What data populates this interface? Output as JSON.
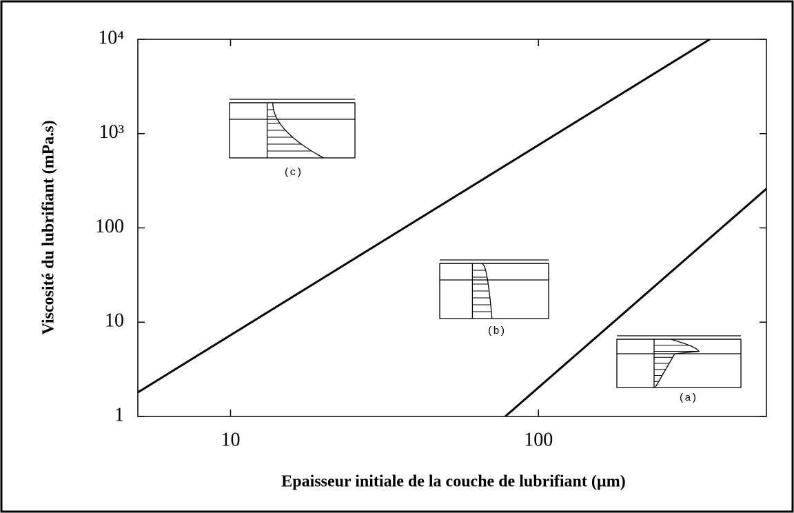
{
  "chart_data": {
    "type": "line",
    "xlabel": "Epaisseur initiale de la couche de lubrifiant (µm)",
    "ylabel": "Viscosité du lubrifiant (mPa.s)",
    "log_x": true,
    "log_y": true,
    "xlim": [
      5,
      550
    ],
    "ylim": [
      1,
      10000
    ],
    "xticks": [
      10,
      100
    ],
    "yticks": [
      1,
      10,
      100,
      {
        "value": 1000,
        "label": "10³"
      },
      {
        "value": 10000,
        "label": "10⁴"
      }
    ],
    "series": [
      {
        "color": "#000000",
        "x": [
          5,
          360
        ],
        "values": [
          1.8,
          10000
        ]
      },
      {
        "color": "#000000",
        "x": [
          78,
          550
        ],
        "values": [
          1,
          260
        ]
      }
    ],
    "annotations": [
      "(c)",
      "(b)",
      "(a)"
    ]
  }
}
